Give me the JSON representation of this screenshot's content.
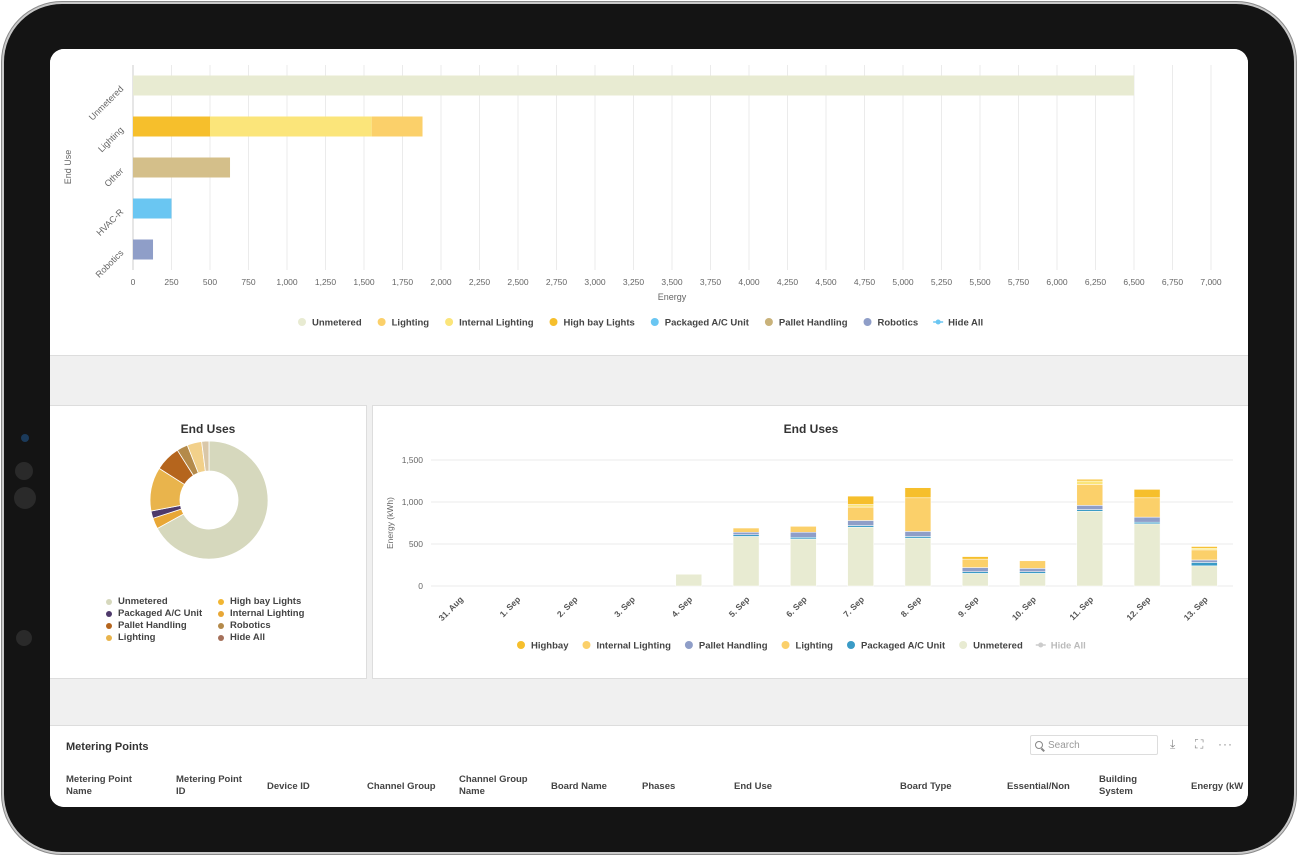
{
  "bar_chart": {
    "type": "bar",
    "orientation": "horizontal",
    "stacked": true,
    "ylabel": "End Use",
    "xlabel": "Energy",
    "categories": [
      "Unmetered",
      "Lighting",
      "Other",
      "HVAC-R",
      "Robotics"
    ],
    "segments": [
      [
        {
          "value": 6500,
          "color": "#e8ebd2"
        }
      ],
      [
        {
          "value": 500,
          "color": "#f6bf2c"
        },
        {
          "value": 1050,
          "color": "#fbe57a"
        },
        {
          "value": 330,
          "color": "#fbd06a"
        }
      ],
      [
        {
          "value": 630,
          "color": "#d4bf8a"
        }
      ],
      [
        {
          "value": 250,
          "color": "#6ac6f2"
        }
      ],
      [
        {
          "value": 130,
          "color": "#8f9ec8"
        }
      ]
    ],
    "xticks": [
      "0",
      "250",
      "500",
      "750",
      "1,000",
      "1,250",
      "1,500",
      "1,750",
      "2,000",
      "2,250",
      "2,500",
      "2,750",
      "3,000",
      "3,250",
      "3,500",
      "3,750",
      "4,000",
      "4,250",
      "4,500",
      "4,750",
      "5,000",
      "5,250",
      "5,500",
      "5,750",
      "6,000",
      "6,250",
      "6,500",
      "6,750",
      "7,000"
    ],
    "xlim": [
      0,
      7000
    ],
    "legend": [
      {
        "label": "Unmetered",
        "color": "#e8ebd2",
        "icon": "dot"
      },
      {
        "label": "Lighting",
        "color": "#fbd06a",
        "icon": "dot"
      },
      {
        "label": "Internal Lighting",
        "color": "#fbe57a",
        "icon": "dot"
      },
      {
        "label": "High bay Lights",
        "color": "#f6bf2c",
        "icon": "dot"
      },
      {
        "label": "Packaged A/C Unit",
        "color": "#6ac6f2",
        "icon": "dot"
      },
      {
        "label": "Pallet Handling",
        "color": "#c9b27a",
        "icon": "dot"
      },
      {
        "label": "Robotics",
        "color": "#8f9ec8",
        "icon": "dot"
      },
      {
        "label": "Hide All",
        "color": "#6ac6f2",
        "icon": "line-dot"
      }
    ]
  },
  "pie_chart": {
    "title": "End Uses",
    "type": "pie",
    "slices": [
      {
        "label": "Unmetered",
        "value": 67,
        "color": "#d6d8bd"
      },
      {
        "label": "Internal Lighting",
        "value": 3,
        "color": "#e8a736"
      },
      {
        "label": "Packaged A/C Unit",
        "value": 2,
        "color": "#4e3a6b"
      },
      {
        "label": "Lighting",
        "value": 12,
        "color": "#e9b44c"
      },
      {
        "label": "Pallet Handling",
        "value": 7,
        "color": "#b5651d"
      },
      {
        "label": "Robotics",
        "value": 3,
        "color": "#b48a4a"
      },
      {
        "label": "High bay Lights",
        "value": 4,
        "color": "#f2d08a"
      },
      {
        "label": "Hide All",
        "value": 2,
        "color": "#d9c7a8"
      }
    ],
    "legend": [
      {
        "label": "Unmetered",
        "color": "#d6d8bd"
      },
      {
        "label": "High bay Lights",
        "color": "#f2b632"
      },
      {
        "label": "Packaged A/C Unit",
        "color": "#4e3a6b"
      },
      {
        "label": "Internal Lighting",
        "color": "#e8a736"
      },
      {
        "label": "Pallet Handling",
        "color": "#b5651d"
      },
      {
        "label": "Robotics",
        "color": "#b48a4a"
      },
      {
        "label": "Lighting",
        "color": "#e9b44c"
      },
      {
        "label": "Hide All",
        "color": "#a5705a"
      }
    ]
  },
  "column_chart": {
    "title": "End Uses",
    "type": "bar",
    "stacked": true,
    "ylabel": "Energy (kWh)",
    "ylim": [
      0,
      1500
    ],
    "yticks": [
      "0",
      "500",
      "1,000",
      "1,500"
    ],
    "categories": [
      "31. Aug",
      "1. Sep",
      "2. Sep",
      "3. Sep",
      "4. Sep",
      "5. Sep",
      "6. Sep",
      "7. Sep",
      "8. Sep",
      "9. Sep",
      "10. Sep",
      "11. Sep",
      "12. Sep",
      "13. Sep"
    ],
    "series": [
      {
        "name": "Unmetered",
        "color": "#e8ebd2",
        "values": [
          0,
          0,
          0,
          0,
          140,
          590,
          560,
          700,
          570,
          150,
          150,
          890,
          740,
          240
        ]
      },
      {
        "name": "Packaged A/C Unit",
        "color": "#3a9bc6",
        "values": [
          0,
          0,
          0,
          0,
          0,
          20,
          20,
          20,
          20,
          20,
          20,
          20,
          20,
          40
        ]
      },
      {
        "name": "Pallet Handling",
        "color": "#8f9ec8",
        "values": [
          0,
          0,
          0,
          0,
          0,
          30,
          60,
          60,
          60,
          50,
          40,
          50,
          60,
          30
        ]
      },
      {
        "name": "Lighting",
        "color": "#fbd06a",
        "values": [
          0,
          0,
          0,
          0,
          0,
          50,
          70,
          160,
          400,
          100,
          90,
          250,
          230,
          120
        ]
      },
      {
        "name": "Internal Lighting",
        "color": "#fbe57a",
        "values": [
          0,
          0,
          0,
          0,
          0,
          0,
          0,
          30,
          0,
          0,
          0,
          40,
          0,
          20
        ]
      },
      {
        "name": "Highbay",
        "color": "#f6bf2c",
        "values": [
          0,
          0,
          0,
          0,
          0,
          0,
          0,
          100,
          120,
          30,
          0,
          20,
          100,
          20
        ]
      }
    ],
    "legend": [
      {
        "label": "Highbay",
        "color": "#f6bf2c",
        "icon": "dot"
      },
      {
        "label": "Internal Lighting",
        "color": "#fbd06a",
        "icon": "dot"
      },
      {
        "label": "Pallet Handling",
        "color": "#8f9ec8",
        "icon": "dot"
      },
      {
        "label": "Lighting",
        "color": "#fbd06a",
        "icon": "dot"
      },
      {
        "label": "Packaged A/C Unit",
        "color": "#3a9bc6",
        "icon": "dot"
      },
      {
        "label": "Unmetered",
        "color": "#e8ebd2",
        "icon": "dot"
      },
      {
        "label": "Hide All",
        "color": "#cccccc",
        "icon": "line-dot",
        "muted": true
      }
    ]
  },
  "table": {
    "title": "Metering Points",
    "search_placeholder": "Search",
    "toolbar_icons": [
      "download-icon",
      "fullscreen-icon",
      "more-icon"
    ],
    "headers": [
      {
        "label": "Metering Point\nName"
      },
      {
        "label": "Metering Point\nID"
      },
      {
        "label": "Device ID"
      },
      {
        "label": "Channel Group"
      },
      {
        "label": "Channel Group\nName"
      },
      {
        "label": "Board Name"
      },
      {
        "label": "Phases"
      },
      {
        "label": "End Use"
      },
      {
        "label": "Board Type"
      },
      {
        "label": "Essential/Non"
      },
      {
        "label": "Building\nSystem"
      },
      {
        "label": "Energy (kW"
      }
    ]
  }
}
